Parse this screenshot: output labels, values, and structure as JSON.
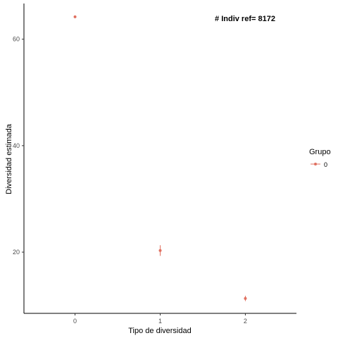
{
  "chart_data": {
    "type": "scatter",
    "xlabel": "Tipo de diversidad",
    "ylabel": "Diversidad estimada",
    "x_ticks": [
      "0",
      "1",
      "2"
    ],
    "y_ticks": [
      20,
      40,
      60
    ],
    "xlim": [
      -0.6,
      2.6
    ],
    "ylim": [
      8.5,
      66.7
    ],
    "annotation": "# Indiv ref= 8172",
    "legend": {
      "title": "Grupo",
      "labels": [
        "0"
      ],
      "position": "right"
    },
    "series": [
      {
        "name": "0",
        "color": "#E07060",
        "points": [
          {
            "x": 0,
            "y": 64.2,
            "ymin": 64.0,
            "ymax": 64.4
          },
          {
            "x": 1,
            "y": 20.3,
            "ymin": 19.3,
            "ymax": 21.3
          },
          {
            "x": 2,
            "y": 11.3,
            "ymin": 10.8,
            "ymax": 11.8
          }
        ]
      }
    ],
    "grid": false
  }
}
